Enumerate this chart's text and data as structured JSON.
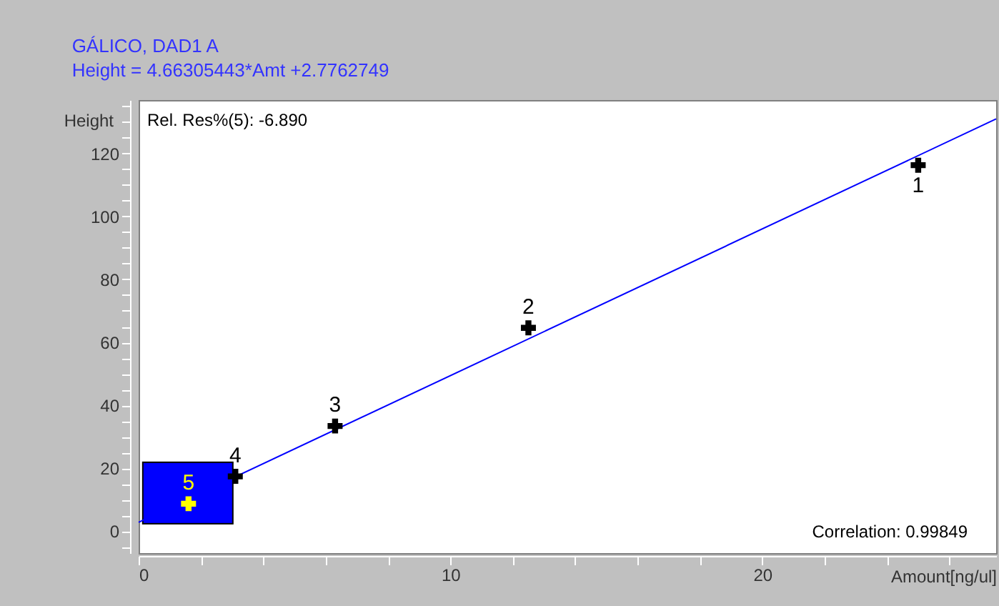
{
  "chart_data": {
    "type": "scatter",
    "title": "GÁLICO, DAD1 A",
    "subtitle": "Height = 4.66305443*Amt +2.7762749",
    "xlabel": "Amount[ng/ul]",
    "ylabel": "Height",
    "annotations": [
      "Rel. Res%(5): -6.890",
      "Correlation: 0.99849",
      {
        "text": "1",
        "x": 25,
        "y": 116.3
      },
      {
        "text": "2",
        "x": 12.5,
        "y": 64.6
      },
      {
        "text": "3",
        "x": 6.3,
        "y": 33.4
      },
      {
        "text": "4",
        "x": 3.1,
        "y": 17.4
      },
      {
        "text": "5",
        "x": 1.6,
        "y": 8.7
      }
    ],
    "series": [
      {
        "type": "scatter",
        "x": [
          25,
          12.5,
          6.3,
          3.1,
          1.6
        ],
        "values": [
          116.3,
          64.6,
          33.4,
          17.4,
          8.7
        ],
        "colors": [
          "#000000",
          "#000000",
          "#000000",
          "#000000",
          "#ffff00"
        ],
        "marker": "cross"
      },
      {
        "type": "line",
        "color": "#0000ff",
        "x": [
          0,
          27.5
        ],
        "values": [
          2.8,
          131.0
        ],
        "marker": "none"
      }
    ],
    "grid": false,
    "xlim": [
      0,
      27.5
    ],
    "xticks": [
      0,
      {
        "value": 2,
        "label": null
      },
      {
        "value": 4,
        "label": null
      },
      {
        "value": 6,
        "label": null
      },
      {
        "value": 8,
        "label": null
      },
      10,
      {
        "value": 12,
        "label": null
      },
      {
        "value": 14,
        "label": null
      },
      {
        "value": 16,
        "label": null
      },
      {
        "value": 18,
        "label": null
      },
      20,
      {
        "value": 22,
        "label": null
      },
      {
        "value": 24,
        "label": null
      },
      {
        "value": 26,
        "label": null
      }
    ],
    "ylim": [
      -7,
      137
    ],
    "yticks": [
      {
        "value": -5,
        "label": null
      },
      0,
      {
        "value": 5,
        "label": null
      },
      {
        "value": 10,
        "label": null
      },
      {
        "value": 15,
        "label": null
      },
      20,
      {
        "value": 25,
        "label": null
      },
      {
        "value": 30,
        "label": null
      },
      {
        "value": 35,
        "label": null
      },
      40,
      {
        "value": 45,
        "label": null
      },
      {
        "value": 50,
        "label": null
      },
      {
        "value": 55,
        "label": null
      },
      60,
      {
        "value": 65,
        "label": null
      },
      {
        "value": 70,
        "label": null
      },
      {
        "value": 75,
        "label": null
      },
      80,
      {
        "value": 85,
        "label": null
      },
      {
        "value": 90,
        "label": null
      },
      {
        "value": 95,
        "label": null
      },
      100,
      {
        "value": 105,
        "label": null
      },
      {
        "value": 110,
        "label": null
      },
      {
        "value": 115,
        "label": null
      },
      120,
      {
        "value": 125,
        "label": null
      },
      {
        "value": 130,
        "label": null
      },
      {
        "value": 135,
        "label": null
      }
    ]
  }
}
